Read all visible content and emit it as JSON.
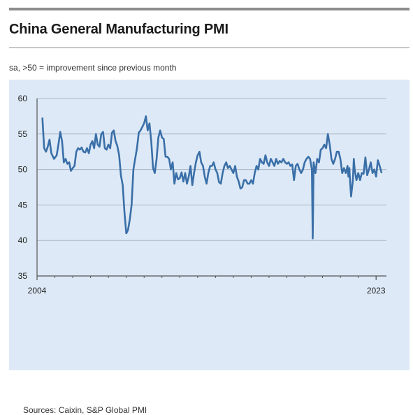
{
  "title": "China General Manufacturing PMI",
  "subtitle": "sa, >50 = improvement since previous month",
  "sources": "Sources: Caixin, S&P Global PMI",
  "colors": {
    "line": "#3a6fa8",
    "panel": "#dde9f6",
    "grid": "#a9b6c6",
    "axis": "#555555"
  },
  "chart_data": {
    "type": "line",
    "title": "China General Manufacturing PMI",
    "subtitle": "sa, >50 = improvement since previous month",
    "ylim": [
      35,
      60
    ],
    "yticks": [
      35,
      40,
      45,
      50,
      55,
      60
    ],
    "xlim": [
      2004.0,
      2023.58
    ],
    "xtick_labels": [
      {
        "x": 2004,
        "label": "2004"
      },
      {
        "x": 2023,
        "label": "2023"
      }
    ],
    "grid": "horizontal",
    "series": [
      {
        "points": [
          [
            2004.3,
            57.2
          ],
          [
            2004.4,
            53.0
          ],
          [
            2004.5,
            52.5
          ],
          [
            2004.6,
            53.2
          ],
          [
            2004.7,
            54.2
          ],
          [
            2004.8,
            52.3
          ],
          [
            2004.95,
            51.5
          ],
          [
            2005.1,
            52.0
          ],
          [
            2005.2,
            53.5
          ],
          [
            2005.3,
            55.3
          ],
          [
            2005.4,
            54.0
          ],
          [
            2005.5,
            51.0
          ],
          [
            2005.6,
            51.5
          ],
          [
            2005.7,
            50.8
          ],
          [
            2005.8,
            51.0
          ],
          [
            2005.9,
            49.8
          ],
          [
            2006.0,
            50.2
          ],
          [
            2006.1,
            50.5
          ],
          [
            2006.2,
            52.5
          ],
          [
            2006.3,
            53.0
          ],
          [
            2006.4,
            52.8
          ],
          [
            2006.5,
            53.1
          ],
          [
            2006.6,
            52.5
          ],
          [
            2006.7,
            52.4
          ],
          [
            2006.8,
            53.0
          ],
          [
            2006.9,
            52.3
          ],
          [
            2007.0,
            53.5
          ],
          [
            2007.1,
            54.0
          ],
          [
            2007.2,
            53.0
          ],
          [
            2007.3,
            55.0
          ],
          [
            2007.4,
            53.5
          ],
          [
            2007.5,
            53.2
          ],
          [
            2007.6,
            55.0
          ],
          [
            2007.7,
            55.3
          ],
          [
            2007.8,
            53.0
          ],
          [
            2007.9,
            52.8
          ],
          [
            2008.0,
            53.5
          ],
          [
            2008.1,
            53.0
          ],
          [
            2008.2,
            55.2
          ],
          [
            2008.3,
            55.5
          ],
          [
            2008.4,
            54.0
          ],
          [
            2008.5,
            53.3
          ],
          [
            2008.6,
            52.0
          ],
          [
            2008.7,
            49.2
          ],
          [
            2008.8,
            47.8
          ],
          [
            2008.9,
            44.0
          ],
          [
            2009.0,
            41.0
          ],
          [
            2009.1,
            41.5
          ],
          [
            2009.2,
            43.0
          ],
          [
            2009.3,
            45.0
          ],
          [
            2009.4,
            50.0
          ],
          [
            2009.5,
            51.5
          ],
          [
            2009.6,
            53.0
          ],
          [
            2009.7,
            55.2
          ],
          [
            2009.8,
            55.5
          ],
          [
            2009.9,
            56.0
          ],
          [
            2010.0,
            56.5
          ],
          [
            2010.1,
            57.5
          ],
          [
            2010.2,
            55.5
          ],
          [
            2010.3,
            56.5
          ],
          [
            2010.4,
            54.0
          ],
          [
            2010.5,
            50.2
          ],
          [
            2010.6,
            49.5
          ],
          [
            2010.7,
            51.5
          ],
          [
            2010.8,
            54.5
          ],
          [
            2010.9,
            55.5
          ],
          [
            2011.0,
            54.5
          ],
          [
            2011.1,
            54.3
          ],
          [
            2011.2,
            51.8
          ],
          [
            2011.3,
            51.8
          ],
          [
            2011.4,
            51.5
          ],
          [
            2011.5,
            50.0
          ],
          [
            2011.6,
            51.0
          ],
          [
            2011.7,
            48.0
          ],
          [
            2011.8,
            49.5
          ],
          [
            2011.9,
            48.6
          ],
          [
            2012.0,
            48.8
          ],
          [
            2012.1,
            49.6
          ],
          [
            2012.2,
            48.3
          ],
          [
            2012.3,
            49.5
          ],
          [
            2012.4,
            48.0
          ],
          [
            2012.5,
            49.0
          ],
          [
            2012.6,
            50.5
          ],
          [
            2012.7,
            47.8
          ],
          [
            2012.8,
            49.5
          ],
          [
            2012.9,
            51.0
          ],
          [
            2013.0,
            52.0
          ],
          [
            2013.1,
            52.5
          ],
          [
            2013.2,
            51.0
          ],
          [
            2013.3,
            50.5
          ],
          [
            2013.4,
            49.0
          ],
          [
            2013.5,
            48.0
          ],
          [
            2013.6,
            49.5
          ],
          [
            2013.7,
            50.5
          ],
          [
            2013.8,
            50.5
          ],
          [
            2013.9,
            51.0
          ],
          [
            2014.0,
            50.0
          ],
          [
            2014.1,
            49.5
          ],
          [
            2014.2,
            48.2
          ],
          [
            2014.3,
            48.0
          ],
          [
            2014.4,
            49.5
          ],
          [
            2014.5,
            50.5
          ],
          [
            2014.6,
            51.0
          ],
          [
            2014.7,
            50.2
          ],
          [
            2014.8,
            50.5
          ],
          [
            2014.9,
            50.0
          ],
          [
            2015.0,
            49.5
          ],
          [
            2015.1,
            50.5
          ],
          [
            2015.2,
            49.0
          ],
          [
            2015.3,
            48.3
          ],
          [
            2015.4,
            47.3
          ],
          [
            2015.5,
            47.5
          ],
          [
            2015.6,
            48.5
          ],
          [
            2015.7,
            48.5
          ],
          [
            2015.8,
            48.0
          ],
          [
            2015.9,
            48.0
          ],
          [
            2016.0,
            48.5
          ],
          [
            2016.1,
            48.0
          ],
          [
            2016.2,
            49.5
          ],
          [
            2016.3,
            50.5
          ],
          [
            2016.4,
            50.0
          ],
          [
            2016.5,
            51.5
          ],
          [
            2016.6,
            51.0
          ],
          [
            2016.7,
            50.8
          ],
          [
            2016.8,
            52.0
          ],
          [
            2016.9,
            51.0
          ],
          [
            2017.0,
            50.5
          ],
          [
            2017.1,
            51.5
          ],
          [
            2017.2,
            51.0
          ],
          [
            2017.3,
            50.5
          ],
          [
            2017.4,
            51.5
          ],
          [
            2017.5,
            50.8
          ],
          [
            2017.6,
            51.2
          ],
          [
            2017.7,
            51.0
          ],
          [
            2017.8,
            51.5
          ],
          [
            2017.9,
            51.0
          ],
          [
            2018.0,
            50.8
          ],
          [
            2018.1,
            51.0
          ],
          [
            2018.2,
            50.5
          ],
          [
            2018.3,
            50.7
          ],
          [
            2018.4,
            48.5
          ],
          [
            2018.5,
            50.5
          ],
          [
            2018.6,
            50.8
          ],
          [
            2018.7,
            50.0
          ],
          [
            2018.8,
            49.5
          ],
          [
            2018.9,
            50.0
          ],
          [
            2019.0,
            51.0
          ],
          [
            2019.1,
            51.5
          ],
          [
            2019.2,
            51.8
          ],
          [
            2019.3,
            51.5
          ],
          [
            2019.4,
            50.0
          ],
          [
            2019.45,
            40.3
          ],
          [
            2019.5,
            51.0
          ],
          [
            2019.6,
            49.5
          ],
          [
            2019.7,
            51.5
          ],
          [
            2019.8,
            51.0
          ],
          [
            2019.9,
            52.8
          ],
          [
            2020.0,
            53.0
          ],
          [
            2020.1,
            53.5
          ],
          [
            2020.2,
            53.0
          ],
          [
            2020.3,
            55.0
          ],
          [
            2020.4,
            53.5
          ],
          [
            2020.5,
            51.5
          ],
          [
            2020.6,
            50.8
          ],
          [
            2020.7,
            51.5
          ],
          [
            2020.8,
            52.5
          ],
          [
            2020.9,
            52.5
          ],
          [
            2021.0,
            51.5
          ],
          [
            2021.1,
            49.5
          ],
          [
            2021.2,
            50.2
          ],
          [
            2021.3,
            49.5
          ],
          [
            2021.4,
            50.5
          ],
          [
            2021.45,
            49.0
          ],
          [
            2021.5,
            50.2
          ],
          [
            2021.55,
            48.0
          ],
          [
            2021.6,
            46.2
          ],
          [
            2021.7,
            48.5
          ],
          [
            2021.75,
            51.5
          ],
          [
            2021.8,
            50.0
          ],
          [
            2021.9,
            48.5
          ],
          [
            2022.0,
            49.5
          ],
          [
            2022.1,
            48.5
          ],
          [
            2022.2,
            49.5
          ],
          [
            2022.3,
            49.4
          ],
          [
            2022.4,
            51.7
          ],
          [
            2022.5,
            49.2
          ],
          [
            2022.6,
            50.0
          ],
          [
            2022.7,
            51.0
          ],
          [
            2022.8,
            49.5
          ],
          [
            2022.9,
            50.0
          ],
          [
            2023.0,
            49.0
          ],
          [
            2023.1,
            51.3
          ],
          [
            2023.2,
            50.5
          ],
          [
            2023.3,
            49.6
          ]
        ]
      }
    ]
  }
}
